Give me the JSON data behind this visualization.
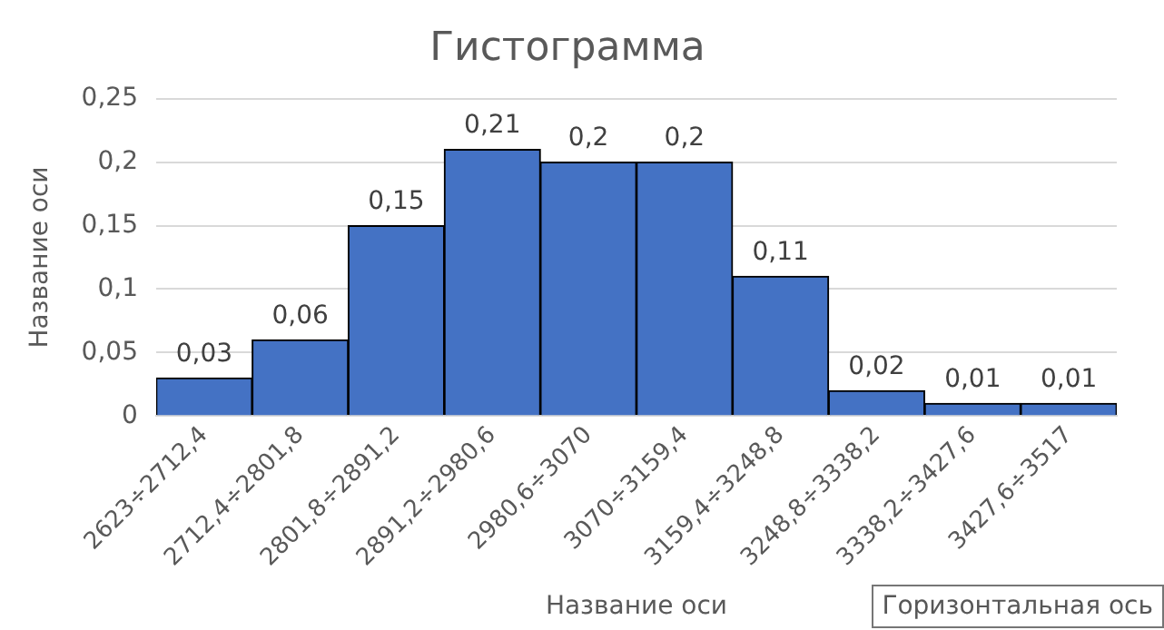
{
  "chart_data": {
    "type": "bar",
    "title": "Гистограмма",
    "xlabel": "Название оси",
    "ylabel": "Название оси",
    "categories": [
      "2623÷2712,4",
      "2712,4÷2801,8",
      "2801,8÷2891,2",
      "2891,2÷2980,6",
      "2980,6÷3070",
      "3070÷3159,4",
      "3159,4÷3248,8",
      "3248,8÷3338,2",
      "3338,2÷3427,6",
      "3427,6÷3517"
    ],
    "values": [
      0.03,
      0.06,
      0.15,
      0.21,
      0.2,
      0.2,
      0.11,
      0.02,
      0.01,
      0.01
    ],
    "value_labels": [
      "0,03",
      "0,06",
      "0,15",
      "0,21",
      "0,2",
      "0,2",
      "0,11",
      "0,02",
      "0,01",
      "0,01"
    ],
    "color": "#4472c4",
    "ylim": [
      0,
      0.25
    ],
    "yticks": [
      0,
      {
        "value": 0.05,
        "label": "0,05"
      },
      {
        "value": 0.1,
        "label": "0,1"
      },
      {
        "value": 0.15,
        "label": "0,15"
      },
      {
        "value": 0.2,
        "label": "0,2"
      },
      {
        "value": 0.25,
        "label": "0,25"
      }
    ],
    "grid": "y",
    "annotations": [
      "Горизонтальная ось"
    ]
  }
}
